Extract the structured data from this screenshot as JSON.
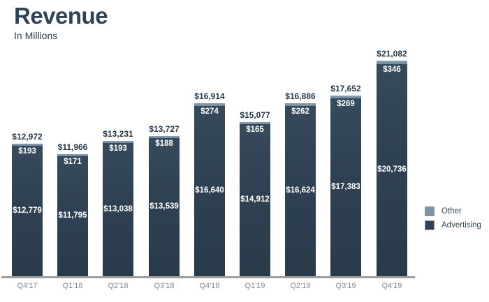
{
  "header": {
    "title": "Revenue",
    "subtitle": "In Millions"
  },
  "chart_data": {
    "type": "bar",
    "stacked": true,
    "title": "Revenue",
    "subtitle": "In Millions",
    "value_prefix": "$",
    "categories": [
      "Q4'17",
      "Q1'18",
      "Q2'18",
      "Q3'18",
      "Q4'18",
      "Q1'19",
      "Q2'19",
      "Q3'19",
      "Q4'19"
    ],
    "series": [
      {
        "name": "Other",
        "color": "#7d94a8",
        "values": [
          193,
          171,
          193,
          188,
          274,
          165,
          262,
          269,
          346
        ]
      },
      {
        "name": "Advertising",
        "color": "#2f4253",
        "values": [
          12779,
          11795,
          13038,
          13539,
          16640,
          14912,
          16624,
          17383,
          20736
        ]
      }
    ],
    "totals": [
      12972,
      11966,
      13231,
      13727,
      16914,
      15077,
      16886,
      17652,
      21082
    ],
    "total_labels": [
      "$12,972",
      "$11,966",
      "$13,231",
      "$13,727",
      "$16,914",
      "$15,077",
      "$16,886",
      "$17,652",
      "$21,082"
    ],
    "ylim": [
      0,
      21082
    ],
    "grid": false,
    "legend_position": "right",
    "colors": {
      "title_text": "#2e4456",
      "total_label_text": "#263a4d",
      "inside_label_text": "#ffffff",
      "x_label_text": "#7f8c98",
      "baseline": "#9e9e9e",
      "background": "#ffffff"
    }
  },
  "legend": {
    "items": [
      {
        "label": "Other",
        "color": "#7d94a8"
      },
      {
        "label": "Advertising",
        "color": "#2f4253"
      }
    ]
  }
}
